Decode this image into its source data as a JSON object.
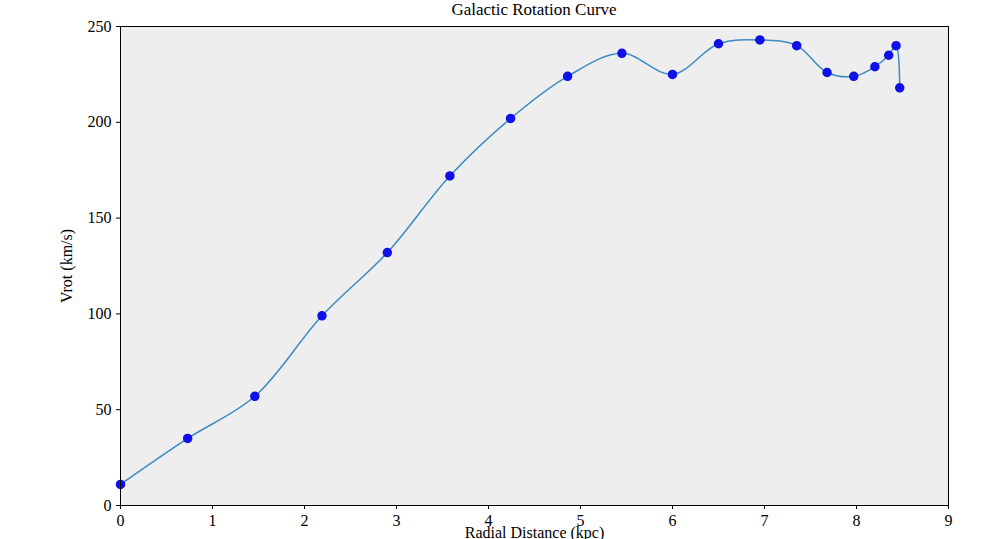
{
  "chart_data": {
    "type": "line",
    "title": "Galactic Rotation Curve",
    "x_label": "Radial Distance (kpc)",
    "y_label": "Vrot (km/s)",
    "x": [
      0,
      0.73,
      1.46,
      2.19,
      2.9,
      3.58,
      4.24,
      4.86,
      5.45,
      6.0,
      6.5,
      6.95,
      7.35,
      7.68,
      7.97,
      8.2,
      8.35,
      8.43,
      8.47
    ],
    "values": [
      11,
      35,
      57,
      99,
      132,
      172,
      202,
      224,
      236,
      225,
      241,
      243,
      240,
      226,
      224,
      229,
      235,
      240,
      218
    ],
    "color": "#3b8bc2",
    "marker": "o",
    "xlim": [
      0,
      9
    ],
    "xticks": [
      0,
      1,
      2,
      3,
      4,
      5,
      6,
      7,
      8,
      9
    ],
    "ylim": [
      0,
      250
    ],
    "yticks": [
      0,
      50,
      100,
      150,
      200,
      250
    ],
    "grid": false
  }
}
